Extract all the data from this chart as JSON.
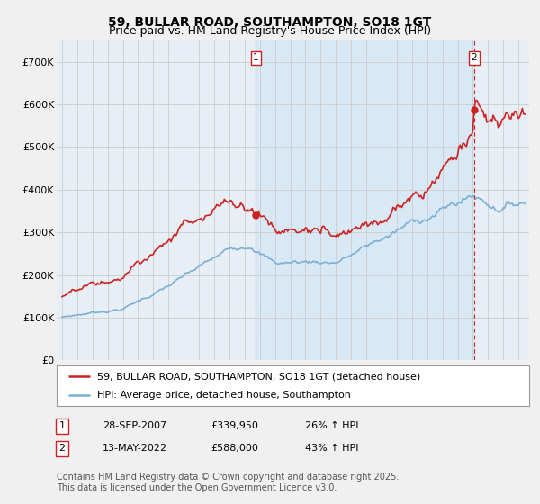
{
  "title": "59, BULLAR ROAD, SOUTHAMPTON, SO18 1GT",
  "subtitle": "Price paid vs. HM Land Registry's House Price Index (HPI)",
  "ylim": [
    0,
    750000
  ],
  "yticks": [
    0,
    100000,
    200000,
    300000,
    400000,
    500000,
    600000,
    700000
  ],
  "ytick_labels": [
    "£0",
    "£100K",
    "£200K",
    "£300K",
    "£400K",
    "£500K",
    "£600K",
    "£700K"
  ],
  "hpi_color": "#7bafd4",
  "price_color": "#cc2222",
  "annotation_color": "#cc2222",
  "shade_color": "#d8e8f5",
  "marker1_date_idx": 153,
  "marker1_price": 339950,
  "marker1_label": "1",
  "marker2_date_idx": 325,
  "marker2_price": 588000,
  "marker2_label": "2",
  "legend_entry1": "59, BULLAR ROAD, SOUTHAMPTON, SO18 1GT (detached house)",
  "legend_entry2": "HPI: Average price, detached house, Southampton",
  "table_row1": [
    "1",
    "28-SEP-2007",
    "£339,950",
    "26% ↑ HPI"
  ],
  "table_row2": [
    "2",
    "13-MAY-2022",
    "£588,000",
    "43% ↑ HPI"
  ],
  "footnote": "Contains HM Land Registry data © Crown copyright and database right 2025.\nThis data is licensed under the Open Government Licence v3.0.",
  "bg_color": "#f0f0f0",
  "plot_bg_color": "#e8eef5",
  "grid_color": "#cccccc",
  "title_fontsize": 10,
  "subtitle_fontsize": 9,
  "tick_fontsize": 8,
  "legend_fontsize": 8,
  "table_fontsize": 8,
  "footnote_fontsize": 7
}
